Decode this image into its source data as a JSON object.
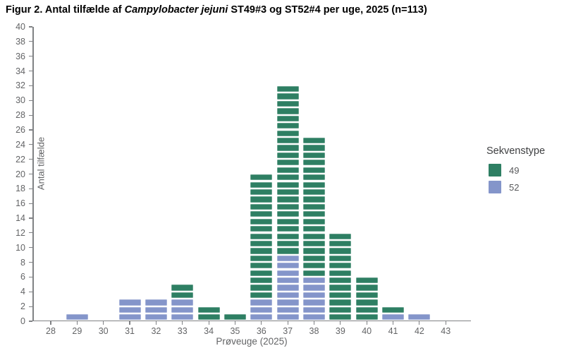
{
  "figure": {
    "title_prefix": "Figur 2. Antal tilfælde af ",
    "title_italic": "Campylobacter jejuni",
    "title_suffix": " ST49#3 og ST52#4 per uge, 2025 (n=113)"
  },
  "chart_data": {
    "type": "bar",
    "subtype": "stacked-unit-case-bricks",
    "title": "Figur 2. Antal tilfælde af Campylobacter jejuni ST49#3 og ST52#4 per uge, 2025 (n=113)",
    "n_total": 113,
    "xlabel": "Prøveuge (2025)",
    "ylabel": "Antal tilfælde",
    "categories": [
      28,
      29,
      30,
      31,
      32,
      33,
      34,
      35,
      36,
      37,
      38,
      39,
      40,
      41,
      42,
      43
    ],
    "series": [
      {
        "name": "52",
        "sequence_type": "ST52#4",
        "color": "#8495ca",
        "stack_order": "bottom",
        "values": [
          0,
          1,
          0,
          3,
          3,
          3,
          0,
          0,
          3,
          9,
          6,
          0,
          0,
          1,
          1,
          0
        ]
      },
      {
        "name": "49",
        "sequence_type": "ST49#3",
        "color": "#2e7f63",
        "stack_order": "top",
        "values": [
          0,
          0,
          0,
          0,
          0,
          2,
          2,
          1,
          17,
          23,
          19,
          12,
          6,
          1,
          0,
          0
        ]
      }
    ],
    "totals": [
      0,
      1,
      0,
      3,
      3,
      5,
      2,
      1,
      20,
      32,
      25,
      12,
      6,
      2,
      1,
      0
    ],
    "ylim": [
      0,
      40
    ],
    "ytick_step": 2,
    "grid": false,
    "legend": {
      "title": "Sekvenstype",
      "position": "right",
      "items": [
        {
          "label": "49",
          "color": "#2e7f63"
        },
        {
          "label": "52",
          "color": "#8495ca"
        }
      ]
    }
  },
  "colors": {
    "st49_green": "#2e7f63",
    "st52_blue": "#8495ca",
    "axis_line": "#808285",
    "tick_text": "#636466",
    "title_text": "#000000"
  }
}
